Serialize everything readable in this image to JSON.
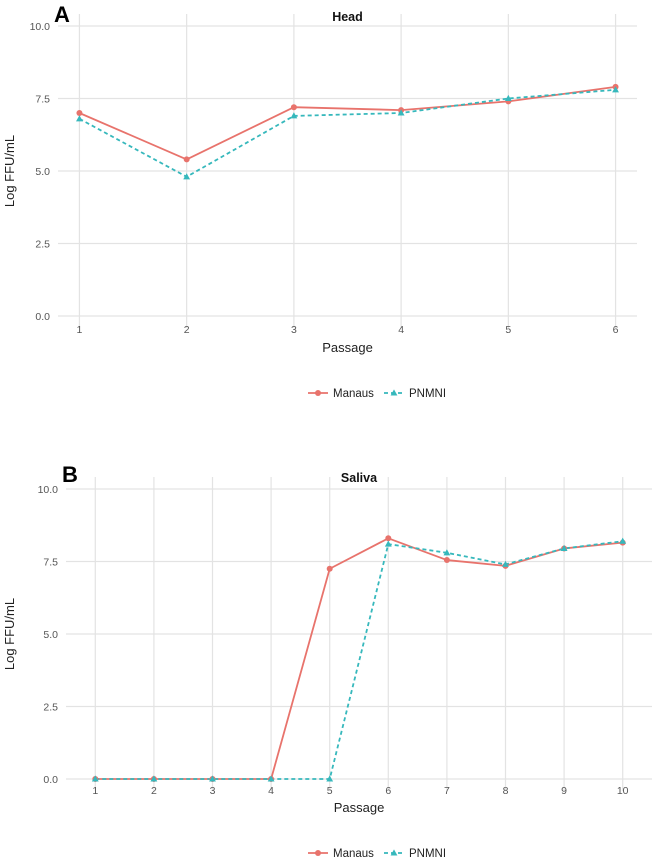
{
  "chart_data": [
    {
      "type": "line",
      "panel_label": "A",
      "title": "Head",
      "xlabel": "Passage",
      "ylabel": "Log FFU/mL",
      "x": [
        1,
        2,
        3,
        4,
        5,
        6
      ],
      "xlim": [
        0.8,
        6.2
      ],
      "ylim": [
        0,
        10
      ],
      "yticks": [
        0.0,
        2.5,
        5.0,
        7.5,
        10.0
      ],
      "ytick_labels": [
        "0.0",
        "2.5",
        "5.0",
        "7.5",
        "10.0"
      ],
      "grid": true,
      "legend": "bottom",
      "series": [
        {
          "name": "Manaus",
          "values": [
            7.0,
            5.4,
            7.2,
            7.1,
            7.4,
            7.9
          ],
          "color": "#e8736c",
          "marker": "circle",
          "line": "solid"
        },
        {
          "name": "PNMNI",
          "values": [
            6.8,
            4.8,
            6.9,
            7.0,
            7.5,
            7.8
          ],
          "color": "#36b8bc",
          "marker": "triangle",
          "line": "dashed"
        }
      ]
    },
    {
      "type": "line",
      "panel_label": "B",
      "title": "Saliva",
      "xlabel": "Passage",
      "ylabel": "Log FFU/mL",
      "x": [
        1,
        2,
        3,
        4,
        5,
        6,
        7,
        8,
        9,
        10
      ],
      "xlim": [
        0.5,
        10.5
      ],
      "ylim": [
        0,
        10
      ],
      "yticks": [
        0.0,
        2.5,
        5.0,
        7.5,
        10.0
      ],
      "ytick_labels": [
        "0.0",
        "2.5",
        "5.0",
        "7.5",
        "10.0"
      ],
      "grid": true,
      "legend": "bottom",
      "series": [
        {
          "name": "Manaus",
          "values": [
            0,
            0,
            0,
            0,
            7.25,
            8.3,
            7.55,
            7.35,
            7.95,
            8.15
          ],
          "color": "#e8736c",
          "marker": "circle",
          "line": "solid"
        },
        {
          "name": "PNMNI",
          "values": [
            0,
            0,
            0,
            0,
            0,
            8.1,
            7.8,
            7.4,
            7.95,
            8.2
          ],
          "color": "#36b8bc",
          "marker": "triangle",
          "line": "dashed"
        }
      ]
    }
  ]
}
